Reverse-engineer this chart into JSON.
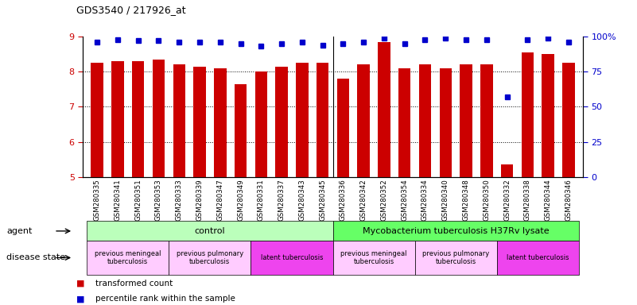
{
  "title": "GDS3540 / 217926_at",
  "samples": [
    "GSM280335",
    "GSM280341",
    "GSM280351",
    "GSM280353",
    "GSM280333",
    "GSM280339",
    "GSM280347",
    "GSM280349",
    "GSM280331",
    "GSM280337",
    "GSM280343",
    "GSM280345",
    "GSM280336",
    "GSM280342",
    "GSM280352",
    "GSM280354",
    "GSM280334",
    "GSM280340",
    "GSM280348",
    "GSM280350",
    "GSM280332",
    "GSM280338",
    "GSM280344",
    "GSM280346"
  ],
  "bar_values": [
    8.25,
    8.3,
    8.3,
    8.35,
    8.2,
    8.15,
    8.1,
    7.65,
    8.0,
    8.15,
    8.25,
    8.25,
    7.8,
    8.2,
    8.85,
    8.1,
    8.2,
    8.1,
    8.2,
    8.2,
    5.35,
    8.55,
    8.5,
    8.25
  ],
  "percentile_values": [
    96,
    98,
    97,
    97,
    96,
    96,
    96,
    95,
    93,
    95,
    96,
    94,
    95,
    96,
    99,
    95,
    98,
    99,
    98,
    98,
    57,
    98,
    99,
    96
  ],
  "bar_color": "#cc0000",
  "percentile_color": "#0000cc",
  "ylim_left": [
    5,
    9
  ],
  "ylim_right": [
    0,
    100
  ],
  "yticks_left": [
    5,
    6,
    7,
    8,
    9
  ],
  "yticks_right": [
    0,
    25,
    50,
    75,
    100
  ],
  "agent_groups": [
    {
      "label": "control",
      "start": 0,
      "end": 12,
      "color": "#bbffbb"
    },
    {
      "label": "Mycobacterium tuberculosis H37Rv lysate",
      "start": 12,
      "end": 24,
      "color": "#66ff66"
    }
  ],
  "disease_groups": [
    {
      "label": "previous meningeal\ntuberculosis",
      "start": 0,
      "end": 4,
      "color": "#ffccff"
    },
    {
      "label": "previous pulmonary\ntuberculosis",
      "start": 4,
      "end": 8,
      "color": "#ffccff"
    },
    {
      "label": "latent tuberculosis",
      "start": 8,
      "end": 12,
      "color": "#ee44ee"
    },
    {
      "label": "previous meningeal\ntuberculosis",
      "start": 12,
      "end": 16,
      "color": "#ffccff"
    },
    {
      "label": "previous pulmonary\ntuberculosis",
      "start": 16,
      "end": 20,
      "color": "#ffccff"
    },
    {
      "label": "latent tuberculosis",
      "start": 20,
      "end": 24,
      "color": "#ee44ee"
    }
  ],
  "agent_label": "agent",
  "disease_label": "disease state",
  "legend_bar_label": "transformed count",
  "legend_pct_label": "percentile rank within the sample",
  "background_color": "#ffffff"
}
